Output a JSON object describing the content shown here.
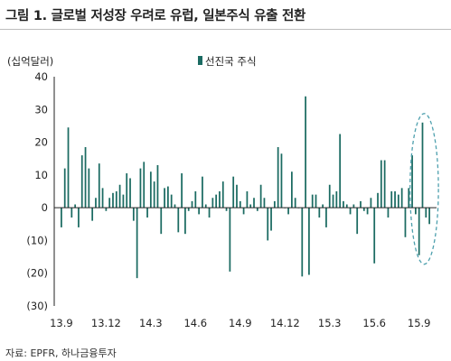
{
  "title": "그림 1. 글로벌 저성장 우려로 유럽, 일본주식 유출 전환",
  "source": "자료: EPFR, 하나금융투자",
  "colors": {
    "bar": "#1b6b62",
    "axis": "#222222",
    "ellipse": "#4ea0ae"
  },
  "chart_data": {
    "type": "bar",
    "unit_label": "(십억달러)",
    "series": [
      {
        "name": "선진국 주식",
        "values": [
          -6,
          12,
          24.5,
          -3,
          1,
          -6,
          16,
          18.5,
          12,
          -4,
          3,
          13.5,
          6,
          -1,
          3,
          4.5,
          5,
          7,
          4,
          10.5,
          9,
          -4,
          -21.5,
          12,
          14,
          -3,
          11,
          8,
          13,
          -8,
          6,
          6.5,
          4,
          1,
          -7.5,
          10.5,
          -8,
          -1,
          2,
          5,
          -2,
          9.5,
          1,
          -3,
          3,
          4,
          5,
          8,
          -1,
          -19.5,
          9.5,
          7,
          2,
          -2,
          5,
          1,
          3,
          -1,
          7,
          3,
          -10,
          -7,
          2,
          18.5,
          16.5,
          0,
          -2,
          11,
          3,
          0,
          -21,
          34,
          -20.5,
          4,
          4,
          -3,
          1,
          -6,
          7,
          4,
          5,
          22.5,
          2,
          1,
          -2,
          1,
          -8,
          2,
          -1,
          -2,
          3,
          -17,
          4.5,
          14.5,
          14.5,
          -3,
          5,
          5,
          4,
          6,
          -9,
          6,
          16,
          -2,
          -14.5,
          26,
          -3,
          -5
        ]
      }
    ],
    "ylim": [
      -30,
      40
    ],
    "yticks": [
      40,
      30,
      20,
      10,
      0,
      -10,
      -20,
      -30
    ],
    "ytick_labels": [
      "40",
      "30",
      "20",
      "10",
      "0",
      "(10)",
      "(20)",
      "(30)"
    ],
    "xtick_labels": [
      "13.9",
      "13.12",
      "14.3",
      "14.6",
      "14.9",
      "14.12",
      "15.3",
      "15.6",
      "15.9"
    ],
    "xtick_indices": [
      0,
      13,
      26,
      39,
      52,
      65,
      78,
      91,
      104
    ],
    "legend_position": "top-center",
    "highlight_bars": [
      104,
      105,
      106,
      107
    ]
  }
}
